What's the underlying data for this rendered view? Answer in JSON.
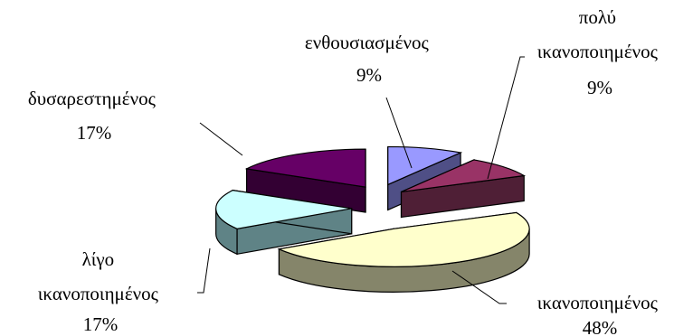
{
  "chart_data": {
    "type": "pie",
    "title": "",
    "legend": "none",
    "three_d": true,
    "exploded": true,
    "slices": [
      {
        "label": "ενθουσιασμένος",
        "value": 9,
        "value_label": "9%",
        "color": "#9999ff",
        "side_color": "#4f4f86"
      },
      {
        "label": "πολύ ικανοποιημένος",
        "value": 9,
        "value_label": "9%",
        "color": "#993366",
        "side_color": "#4f1f36"
      },
      {
        "label": "ικανοποιημένος",
        "value": 48,
        "value_label": "48%",
        "color": "#ffffcc",
        "side_color": "#85856a"
      },
      {
        "label": "λίγο ικανοποιημένος",
        "value": 17,
        "value_label": "17%",
        "color": "#ccffff",
        "side_color": "#5f8386"
      },
      {
        "label": "δυσαρεστημένος",
        "value": 17,
        "value_label": "17%",
        "color": "#660066",
        "side_color": "#330033"
      }
    ]
  },
  "labels": {
    "enthousiasmenos": {
      "lines": [
        "ενθουσιασμένος"
      ],
      "pct": "9%"
    },
    "poly": {
      "lines": [
        "πολύ",
        "ικανοποιημένος"
      ],
      "pct": "9%"
    },
    "ikanopoiimenos": {
      "lines": [
        "ικανοποιημένος"
      ],
      "pct": "48%"
    },
    "ligo": {
      "lines": [
        "λίγο",
        "ικανοποιημένος"
      ],
      "pct": "17%"
    },
    "dysarestimenos": {
      "lines": [
        "δυσαρεστημένος"
      ],
      "pct": "17%"
    }
  }
}
